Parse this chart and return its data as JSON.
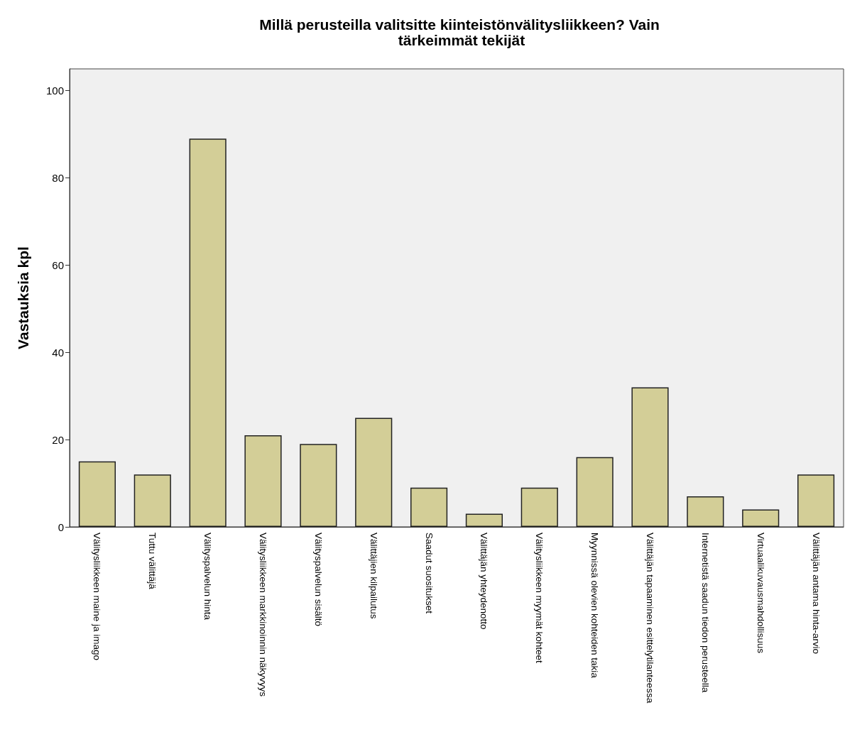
{
  "chart_data": {
    "type": "bar",
    "title": "Millä perusteilla valitsitte kiinteistönvälitysliikkeen? Vain tärkeimmät tekijät",
    "ylabel": "Vastauksia kpl",
    "categories": [
      "Välitysliikkeen maine ja imago",
      "Tuttu välittäjä",
      "Välityspalvelun hinta",
      "Välitysliikkeen markkinoinnin näkyvyys",
      "Välityspalvelun sisältö",
      "Välittäjien kilpailutus",
      "Saadut suositukset",
      "Välittäjän yhteydenotto",
      "Välitysliikkeen myymät kohteet",
      "Myynnissä olevien kohteiden takia",
      "Välittäjän tapaaminen esittelytilanteessa",
      "Internetistä saadun tiedon perusteella",
      "Virtuaalikuvausmahdollisuus",
      "Välittäjän antama hinta-arvio"
    ],
    "values": [
      15,
      12,
      89,
      21,
      19,
      25,
      9,
      3,
      9,
      16,
      32,
      7,
      4,
      12
    ],
    "color": "#d3ce97",
    "ylim": [
      0,
      105
    ],
    "yticks": [
      0,
      20,
      40,
      60,
      80,
      100
    ],
    "grid": false
  }
}
